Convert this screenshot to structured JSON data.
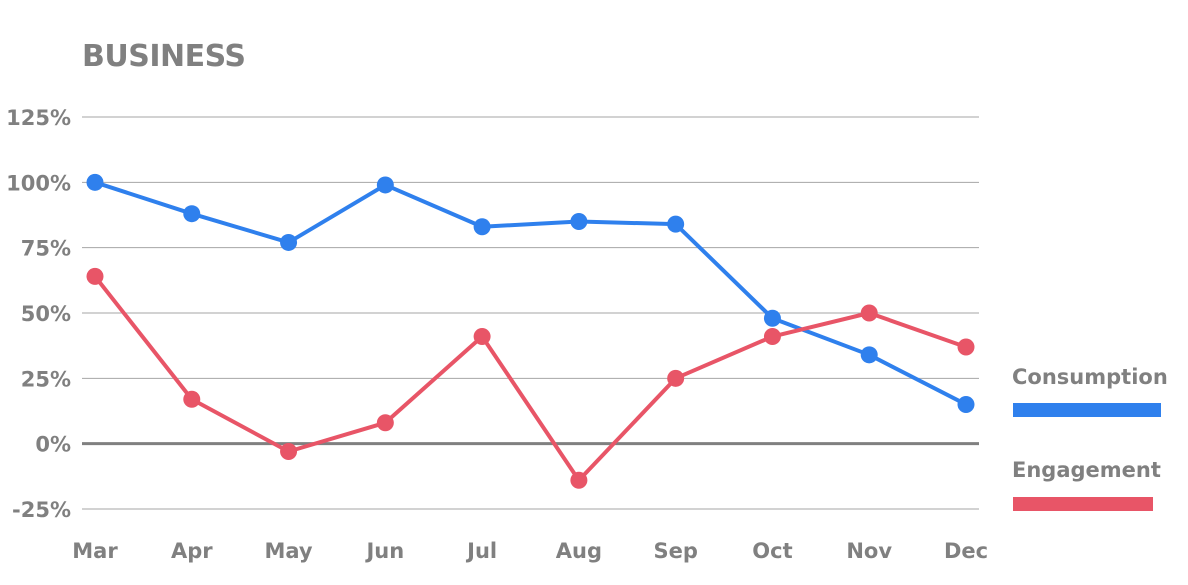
{
  "chart_data": {
    "type": "line",
    "title": "BUSINESS",
    "categories": [
      "Mar",
      "Apr",
      "May",
      "Jun",
      "Jul",
      "Aug",
      "Sep",
      "Oct",
      "Nov",
      "Dec"
    ],
    "y_ticks": [
      "-25%",
      "0%",
      "25%",
      "50%",
      "75%",
      "100%",
      "125%"
    ],
    "y_tick_values": [
      -25,
      0,
      25,
      50,
      75,
      100,
      125
    ],
    "ylim": [
      -25,
      125
    ],
    "grid": true,
    "legend_position": "right",
    "series": [
      {
        "name": "Consumption",
        "color": "#2f80ed",
        "values": [
          100,
          88,
          77,
          99,
          83,
          85,
          84,
          48,
          34,
          15
        ]
      },
      {
        "name": "Engagement",
        "color": "#e85567",
        "values": [
          64,
          17,
          -3,
          8,
          41,
          -14,
          25,
          41,
          50,
          37
        ]
      }
    ]
  }
}
